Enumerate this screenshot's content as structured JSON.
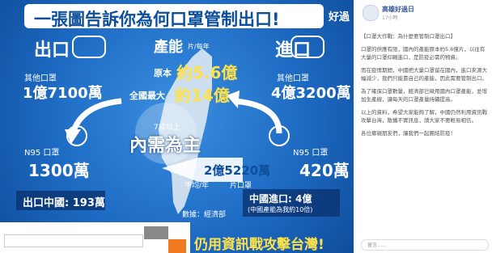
{
  "infographic": {
    "title": "一張圖告訴你為何口罩管制出口!",
    "logo": "好過",
    "export": {
      "heading": "出口",
      "other_label": "其他口罩",
      "other_value": "1億7100萬",
      "n95_label": "N95 口罩",
      "n95_value": "1300萬",
      "china": "出口中國: 193萬"
    },
    "capacity": {
      "heading": "產能",
      "unit": "片/每年",
      "original_label": "原本",
      "original_value": "約5.6億",
      "max_label": "全國最大",
      "max_value": "約14億",
      "domestic_share": "7成以上",
      "domestic": "內需為主",
      "average_value": "2億5220萬",
      "average_unit": "片口罩",
      "average_label": "平均/年",
      "source": "數據：經濟部"
    },
    "import": {
      "heading": "進口",
      "other_label": "其他口罩",
      "other_value": "4億3200萬",
      "n95_label": "N95 口罩",
      "n95_value": "420萬",
      "china": "中國進口: 4億",
      "china_note": "(中國產能為我約10倍)"
    },
    "banner": "仍用資訊戰攻擊台灣!"
  },
  "post": {
    "page_name": "高雄好過日",
    "time": "17小時",
    "paragraphs": [
      "【口罩大作戰：為什麼要管制口罩出口】",
      "口罩的供應有限，國內的產能原本約5.6億片，以往有大量的口罩仰賴進口，是防疫必需的物資。",
      "而在疫情期間，中國把大量口罩留在國內，進口來源大幅減少，我們只能靠自己的產能，因此需要管制出口。",
      "為了確保口罩數量，經濟部已徵用國內口罩產能，並增加生產線，讓每天的口罩產量持續提高。",
      "以上的資料，希望大家能夠了解，中國仍然利用資訊戰攻擊台灣，散播不實訊息，請大家不要輕易相信。",
      "各位鄉親朋友們，讓我們一起團結防疫！"
    ],
    "comment_placeholder": "留言……"
  }
}
